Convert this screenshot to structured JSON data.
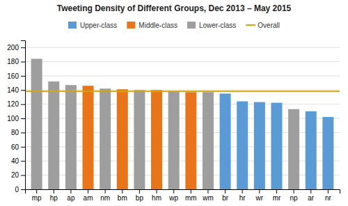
{
  "chart_data": {
    "type": "bar",
    "title": "Tweeting Density of Different Groups, Dec 2013 – May 2015",
    "categories": [
      "mp",
      "hp",
      "ap",
      "am",
      "nm",
      "bm",
      "bp",
      "hm",
      "wp",
      "mm",
      "wm",
      "br",
      "hr",
      "wr",
      "mr",
      "np",
      "ar",
      "nr"
    ],
    "series": [
      {
        "name": "Upper-class",
        "color": "#5B9BD5",
        "values": [
          null,
          null,
          null,
          null,
          null,
          null,
          null,
          null,
          null,
          null,
          null,
          135,
          124,
          123,
          122,
          null,
          110,
          102
        ]
      },
      {
        "name": "Middle-class",
        "color": "#E8751A",
        "values": [
          null,
          null,
          null,
          146,
          null,
          141,
          null,
          140,
          null,
          137,
          null,
          null,
          null,
          null,
          null,
          null,
          null,
          null
        ]
      },
      {
        "name": "Lower-class",
        "color": "#9E9E9E",
        "values": [
          184,
          152,
          147,
          null,
          142,
          null,
          140,
          null,
          138,
          null,
          137,
          null,
          null,
          null,
          null,
          113,
          null,
          null
        ]
      }
    ],
    "reference_line": {
      "name": "Overall",
      "color": "#D4A800",
      "value": 138
    },
    "ylim": [
      0,
      210
    ],
    "yticks": [
      0,
      20,
      40,
      60,
      80,
      100,
      120,
      140,
      160,
      180,
      200
    ],
    "grid": true
  }
}
